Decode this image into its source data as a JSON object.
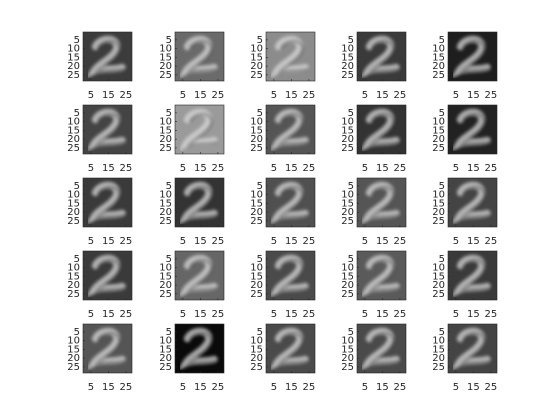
{
  "chart_data": [
    {
      "type": "image",
      "color": "#3c3c3c",
      "xlim": [
        0.5,
        28.5
      ],
      "ylim": [
        0.5,
        28.5
      ],
      "ydir": "reverse",
      "xticks": [
        5,
        15,
        25
      ],
      "yticks": [
        5,
        10,
        15,
        20,
        25
      ]
    },
    {
      "type": "image",
      "color": "#6a6a6a",
      "xlim": [
        0.5,
        28.5
      ],
      "ylim": [
        0.5,
        28.5
      ],
      "ydir": "reverse",
      "xticks": [
        5,
        15,
        25
      ],
      "yticks": [
        5,
        10,
        15,
        20,
        25
      ]
    },
    {
      "type": "image",
      "color": "#8c8c8c",
      "xlim": [
        0.5,
        28.5
      ],
      "ylim": [
        0.5,
        28.5
      ],
      "ydir": "reverse",
      "xticks": [
        5,
        15,
        25
      ],
      "yticks": [
        5,
        10,
        15,
        20,
        25
      ]
    },
    {
      "type": "image",
      "color": "#3a3a3a",
      "xlim": [
        0.5,
        28.5
      ],
      "ylim": [
        0.5,
        28.5
      ],
      "ydir": "reverse",
      "xticks": [
        5,
        15,
        25
      ],
      "yticks": [
        5,
        10,
        15,
        20,
        25
      ]
    },
    {
      "type": "image",
      "color": "#1e1e1e",
      "xlim": [
        0.5,
        28.5
      ],
      "ylim": [
        0.5,
        28.5
      ],
      "ydir": "reverse",
      "xticks": [
        5,
        15,
        25
      ],
      "yticks": [
        5,
        10,
        15,
        20,
        25
      ]
    },
    {
      "type": "image",
      "color": "#444444",
      "xlim": [
        0.5,
        28.5
      ],
      "ylim": [
        0.5,
        28.5
      ],
      "ydir": "reverse",
      "xticks": [
        5,
        15,
        25
      ],
      "yticks": [
        5,
        10,
        15,
        20,
        25
      ]
    },
    {
      "type": "image",
      "color": "#9a9a9a",
      "xlim": [
        0.5,
        28.5
      ],
      "ylim": [
        0.5,
        28.5
      ],
      "ydir": "reverse",
      "xticks": [
        5,
        15,
        25
      ],
      "yticks": [
        5,
        10,
        15,
        20,
        25
      ]
    },
    {
      "type": "image",
      "color": "#555555",
      "xlim": [
        0.5,
        28.5
      ],
      "ylim": [
        0.5,
        28.5
      ],
      "ydir": "reverse",
      "xticks": [
        5,
        15,
        25
      ],
      "yticks": [
        5,
        10,
        15,
        20,
        25
      ]
    },
    {
      "type": "image",
      "color": "#333333",
      "xlim": [
        0.5,
        28.5
      ],
      "ylim": [
        0.5,
        28.5
      ],
      "ydir": "reverse",
      "xticks": [
        5,
        15,
        25
      ],
      "yticks": [
        5,
        10,
        15,
        20,
        25
      ]
    },
    {
      "type": "image",
      "color": "#222222",
      "xlim": [
        0.5,
        28.5
      ],
      "ylim": [
        0.5,
        28.5
      ],
      "ydir": "reverse",
      "xticks": [
        5,
        15,
        25
      ],
      "yticks": [
        5,
        10,
        15,
        20,
        25
      ]
    },
    {
      "type": "image",
      "color": "#3a3a3a",
      "xlim": [
        0.5,
        28.5
      ],
      "ylim": [
        0.5,
        28.5
      ],
      "ydir": "reverse",
      "xticks": [
        5,
        15,
        25
      ],
      "yticks": [
        5,
        10,
        15,
        20,
        25
      ]
    },
    {
      "type": "image",
      "color": "#333333",
      "xlim": [
        0.5,
        28.5
      ],
      "ylim": [
        0.5,
        28.5
      ],
      "ydir": "reverse",
      "xticks": [
        5,
        15,
        25
      ],
      "yticks": [
        5,
        10,
        15,
        20,
        25
      ]
    },
    {
      "type": "image",
      "color": "#505050",
      "xlim": [
        0.5,
        28.5
      ],
      "ylim": [
        0.5,
        28.5
      ],
      "ydir": "reverse",
      "xticks": [
        5,
        15,
        25
      ],
      "yticks": [
        5,
        10,
        15,
        20,
        25
      ]
    },
    {
      "type": "image",
      "color": "#555555",
      "xlim": [
        0.5,
        28.5
      ],
      "ylim": [
        0.5,
        28.5
      ],
      "ydir": "reverse",
      "xticks": [
        5,
        15,
        25
      ],
      "yticks": [
        5,
        10,
        15,
        20,
        25
      ]
    },
    {
      "type": "image",
      "color": "#444444",
      "xlim": [
        0.5,
        28.5
      ],
      "ylim": [
        0.5,
        28.5
      ],
      "ydir": "reverse",
      "xticks": [
        5,
        15,
        25
      ],
      "yticks": [
        5,
        10,
        15,
        20,
        25
      ]
    },
    {
      "type": "image",
      "color": "#3a3a3a",
      "xlim": [
        0.5,
        28.5
      ],
      "ylim": [
        0.5,
        28.5
      ],
      "ydir": "reverse",
      "xticks": [
        5,
        15,
        25
      ],
      "yticks": [
        5,
        10,
        15,
        20,
        25
      ]
    },
    {
      "type": "image",
      "color": "#666666",
      "xlim": [
        0.5,
        28.5
      ],
      "ylim": [
        0.5,
        28.5
      ],
      "ydir": "reverse",
      "xticks": [
        5,
        15,
        25
      ],
      "yticks": [
        5,
        10,
        15,
        20,
        25
      ]
    },
    {
      "type": "image",
      "color": "#4a4a4a",
      "xlim": [
        0.5,
        28.5
      ],
      "ylim": [
        0.5,
        28.5
      ],
      "ydir": "reverse",
      "xticks": [
        5,
        15,
        25
      ],
      "yticks": [
        5,
        10,
        15,
        20,
        25
      ]
    },
    {
      "type": "image",
      "color": "#5a5a5a",
      "xlim": [
        0.5,
        28.5
      ],
      "ylim": [
        0.5,
        28.5
      ],
      "ydir": "reverse",
      "xticks": [
        5,
        15,
        25
      ],
      "yticks": [
        5,
        10,
        15,
        20,
        25
      ]
    },
    {
      "type": "image",
      "color": "#3a3a3a",
      "xlim": [
        0.5,
        28.5
      ],
      "ylim": [
        0.5,
        28.5
      ],
      "ydir": "reverse",
      "xticks": [
        5,
        15,
        25
      ],
      "yticks": [
        5,
        10,
        15,
        20,
        25
      ]
    },
    {
      "type": "image",
      "color": "#555555",
      "xlim": [
        0.5,
        28.5
      ],
      "ylim": [
        0.5,
        28.5
      ],
      "ydir": "reverse",
      "xticks": [
        5,
        15,
        25
      ],
      "yticks": [
        5,
        10,
        15,
        20,
        25
      ]
    },
    {
      "type": "image",
      "color": "#0a0a0a",
      "xlim": [
        0.5,
        28.5
      ],
      "ylim": [
        0.5,
        28.5
      ],
      "ydir": "reverse",
      "xticks": [
        5,
        15,
        25
      ],
      "yticks": [
        5,
        10,
        15,
        20,
        25
      ]
    },
    {
      "type": "image",
      "color": "#4a4a4a",
      "xlim": [
        0.5,
        28.5
      ],
      "ylim": [
        0.5,
        28.5
      ],
      "ydir": "reverse",
      "xticks": [
        5,
        15,
        25
      ],
      "yticks": [
        5,
        10,
        15,
        20,
        25
      ]
    },
    {
      "type": "image",
      "color": "#4a4a4a",
      "xlim": [
        0.5,
        28.5
      ],
      "ylim": [
        0.5,
        28.5
      ],
      "ydir": "reverse",
      "xticks": [
        5,
        15,
        25
      ],
      "yticks": [
        5,
        10,
        15,
        20,
        25
      ]
    },
    {
      "type": "image",
      "color": "#444444",
      "xlim": [
        0.5,
        28.5
      ],
      "ylim": [
        0.5,
        28.5
      ],
      "ydir": "reverse",
      "xticks": [
        5,
        15,
        25
      ],
      "yticks": [
        5,
        10,
        15,
        20,
        25
      ]
    }
  ]
}
